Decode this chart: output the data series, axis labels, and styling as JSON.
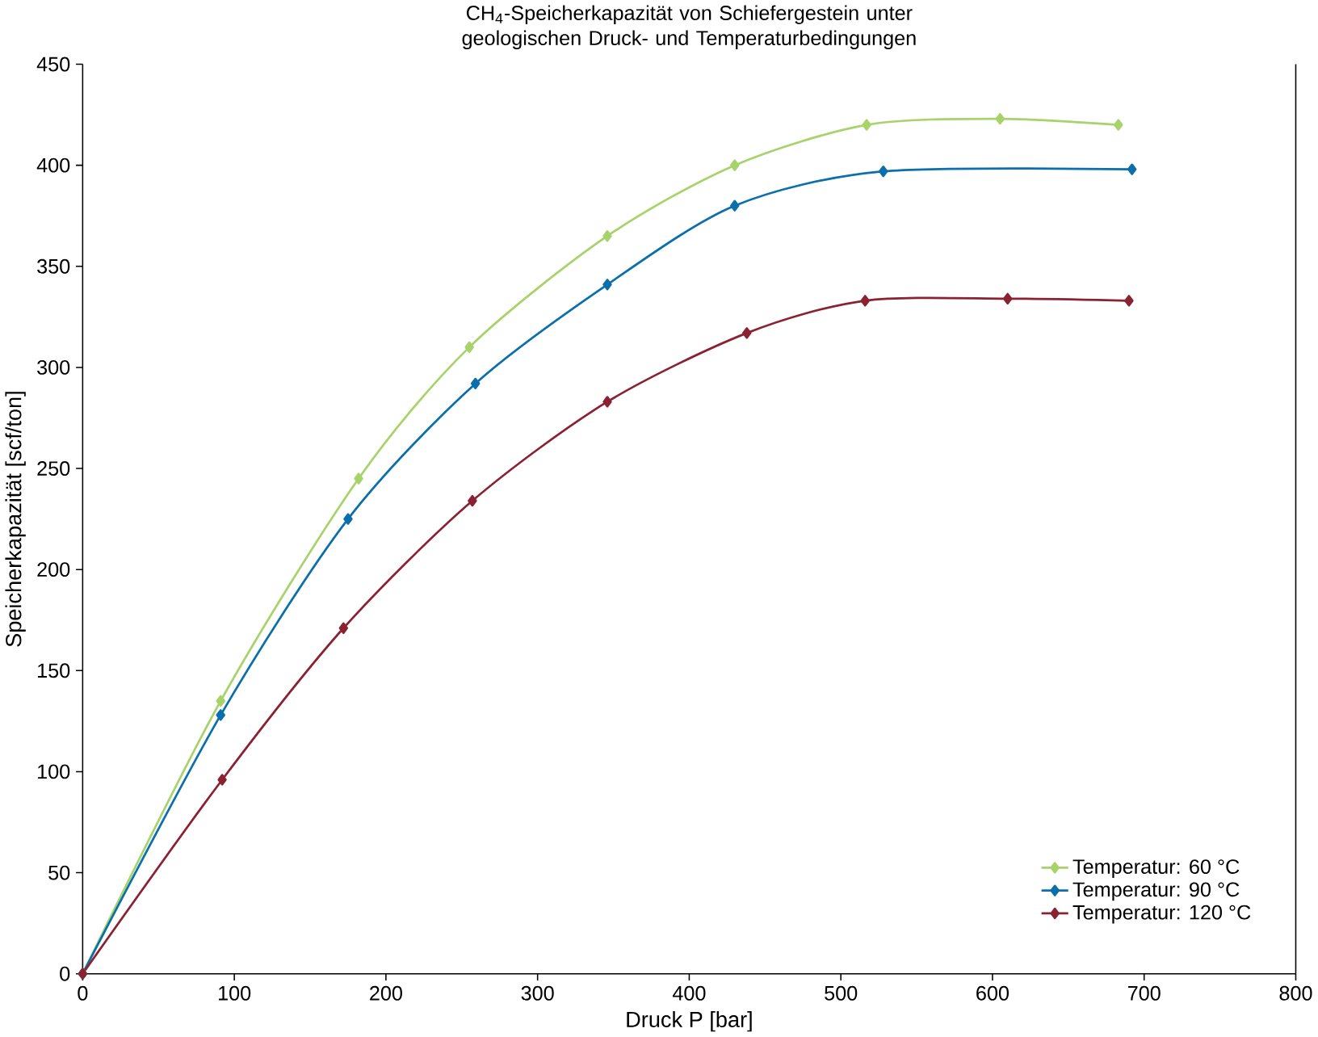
{
  "chart_data": {
    "type": "line",
    "title": "CH$_{4}$-Speicherkapazität von Schiefergestein unter geologischen Druck- und Temperaturbedingungen",
    "xlabel": "Druck P [bar]",
    "ylabel": "Speicherkapazität [scf/ton]",
    "xlim": [
      0,
      800
    ],
    "xticks": [
      0,
      100,
      200,
      300,
      400,
      500,
      600,
      700,
      800
    ],
    "ylim": [
      0,
      450
    ],
    "yticks": [
      0,
      50,
      100,
      150,
      200,
      250,
      300,
      350,
      400,
      450
    ],
    "marker": "diamond",
    "line_style": "solid",
    "legend": "bottom right",
    "grid": false,
    "series": [
      {
        "name": "Temperatur: 60 °C",
        "color": "#a8d26a",
        "x": [
          0,
          91,
          182,
          255,
          346,
          430,
          517,
          605,
          683
        ],
        "values": [
          0,
          135,
          245,
          310,
          365,
          400,
          420,
          423,
          420
        ]
      },
      {
        "name": "Temperatur: 90 °C",
        "color": "#0a6fab",
        "x": [
          0,
          91,
          175,
          259,
          346,
          430,
          528,
          692
        ],
        "values": [
          0,
          128,
          225,
          292,
          341,
          380,
          397,
          398
        ]
      },
      {
        "name": "Temperatur: 120 °C",
        "color": "#8b2232",
        "x": [
          0,
          92,
          172,
          257,
          346,
          438,
          516,
          610,
          690
        ],
        "values": [
          0,
          96,
          171,
          234,
          283,
          317,
          333,
          334,
          333
        ]
      }
    ]
  }
}
